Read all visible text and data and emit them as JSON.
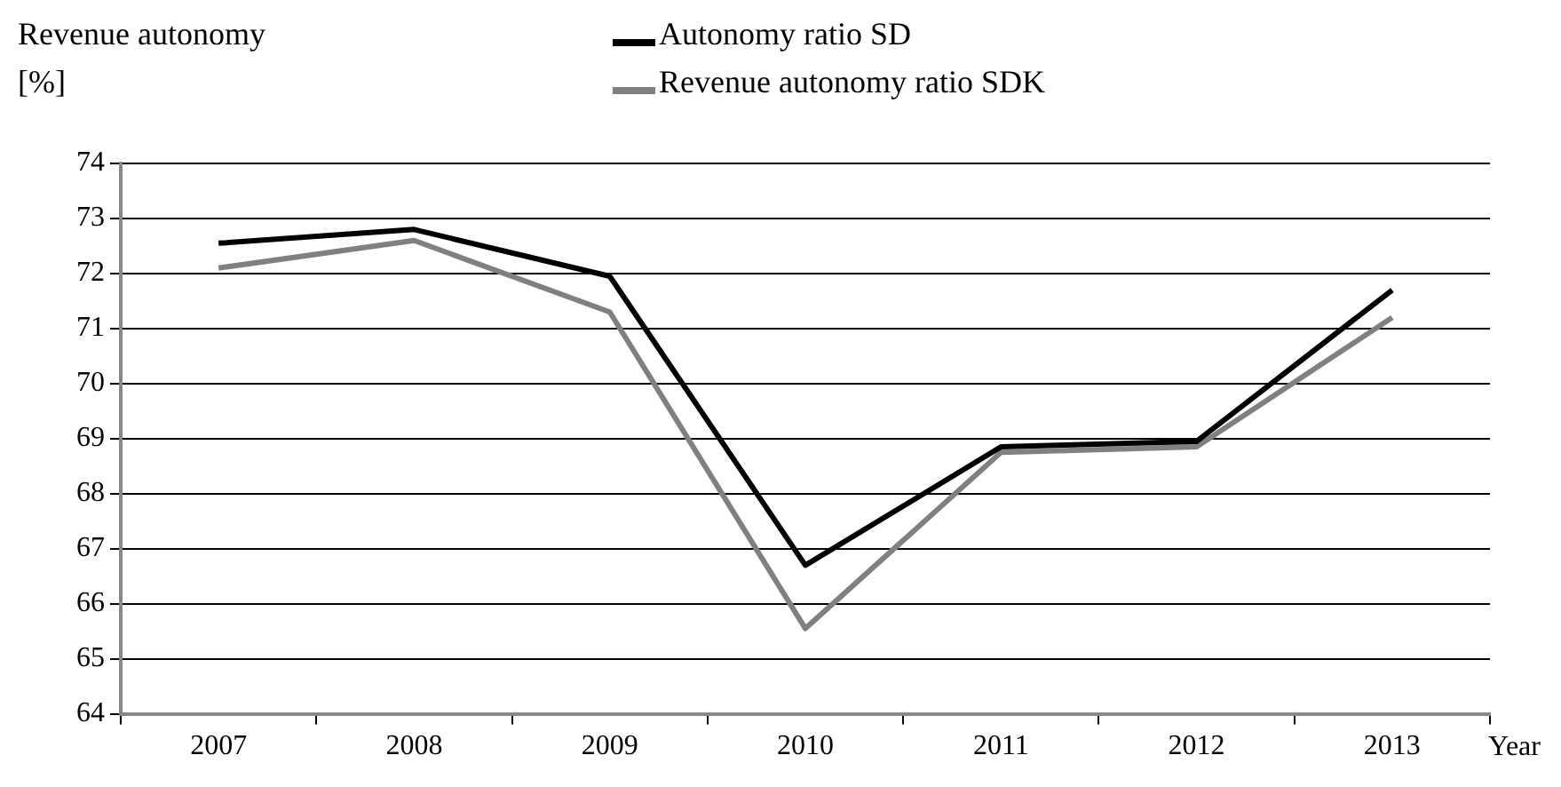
{
  "chart_data": {
    "type": "line",
    "ylabel": "Revenue autonomy [%]",
    "xlabel": "Year",
    "categories": [
      "2007",
      "2008",
      "2009",
      "2010",
      "2011",
      "2012",
      "2013"
    ],
    "series": [
      {
        "name": "Autonomy ratio SD",
        "color": "#000000",
        "values": [
          72.55,
          72.8,
          71.95,
          66.7,
          68.85,
          68.95,
          71.7
        ]
      },
      {
        "name": "Revenue autonomy ratio SDK",
        "color": "#808080",
        "values": [
          72.1,
          72.6,
          71.3,
          65.55,
          68.75,
          68.85,
          71.2
        ]
      }
    ],
    "ylim": [
      64,
      74
    ],
    "yticks": [
      64,
      65,
      66,
      67,
      68,
      69,
      70,
      71,
      72,
      73,
      74
    ],
    "grid": "y",
    "legend": "top",
    "marker": "none",
    "line_style": "solid"
  }
}
